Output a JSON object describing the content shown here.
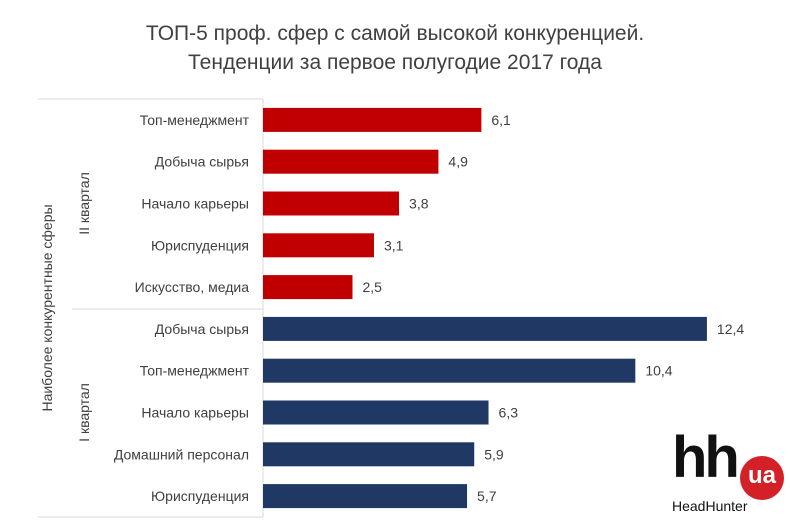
{
  "chart_data": {
    "type": "bar",
    "orientation": "horizontal",
    "title_line1": "ТОП-5 проф. сфер с самой высокой конкуренцией.",
    "title_line2": "Тенденции за первое полугодие 2017 года",
    "ylabel": "Наиболее конкурентные сферы",
    "groups": [
      {
        "name": "II квартал",
        "color": "#c00000",
        "categories": [
          "Топ-менеджмент",
          "Добыча сырья",
          "Начало карьеры",
          "Юриспуденция",
          "Искусство, медиа"
        ],
        "values": [
          6.1,
          4.9,
          3.8,
          3.1,
          2.5
        ],
        "labels": [
          "6,1",
          "4,9",
          "3,8",
          "3,1",
          "2,5"
        ]
      },
      {
        "name": "I квартал",
        "color": "#1f3864",
        "categories": [
          "Добыча сырья",
          "Топ-менеджмент",
          "Начало карьеры",
          "Домашний персонал",
          "Юриспуденция"
        ],
        "values": [
          12.4,
          10.4,
          6.3,
          5.9,
          5.7
        ],
        "labels": [
          "12,4",
          "10,4",
          "6,3",
          "5,9",
          "5,7"
        ]
      }
    ],
    "xlim": [
      0,
      13
    ],
    "grid": false
  },
  "logo": {
    "mark": "hh",
    "badge": "ua",
    "name": "HeadHunter"
  }
}
